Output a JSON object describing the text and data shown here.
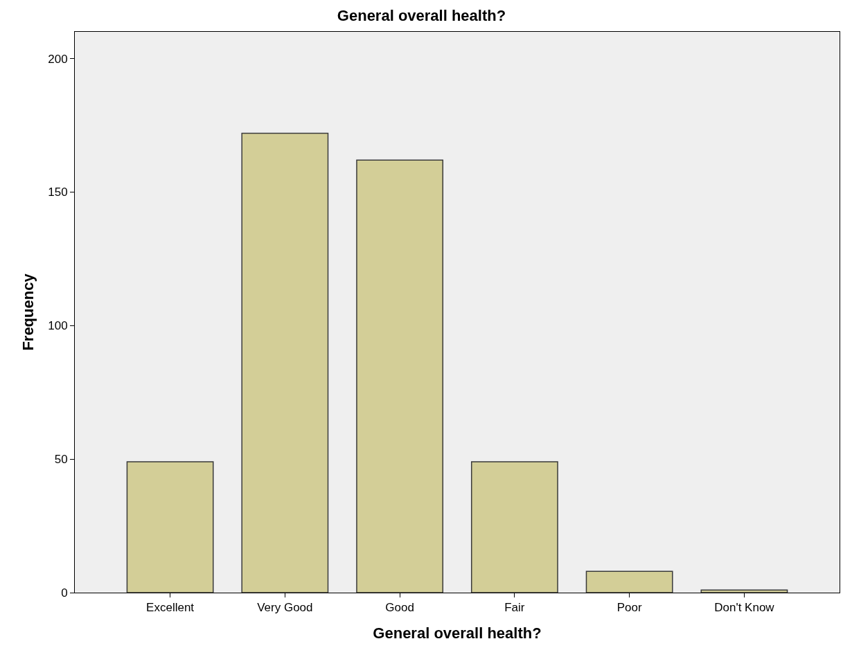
{
  "chart_data": {
    "type": "bar",
    "title": "General overall health?",
    "xlabel": "General overall health?",
    "ylabel": "Frequency",
    "categories": [
      "Excellent",
      "Very Good",
      "Good",
      "Fair",
      "Poor",
      "Don't Know"
    ],
    "values": [
      49,
      172,
      162,
      49,
      8,
      1
    ],
    "color": "#d3ce97",
    "ylim": [
      0,
      210
    ],
    "yticks": [
      0,
      50,
      100,
      150,
      200
    ],
    "grid": false
  }
}
